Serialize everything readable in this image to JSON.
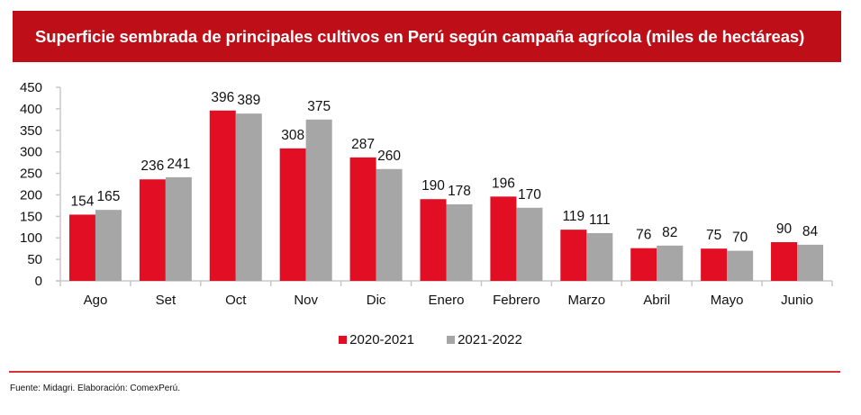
{
  "header": {
    "title": "Superficie sembrada de principales cultivos en Perú según campaña agrícola (miles de hectáreas)"
  },
  "colors": {
    "title_bg": "#be0e18",
    "series1": "#e20e24",
    "series2": "#a6a6a6",
    "axis": "#c8c8c8",
    "rule": "#d8333d"
  },
  "chart_data": {
    "type": "bar",
    "title": "Superficie sembrada de principales cultivos en Perú según campaña agrícola (miles de hectáreas)",
    "xlabel": "",
    "ylabel": "",
    "ylim": [
      0,
      450
    ],
    "yticks": [
      0,
      50,
      100,
      150,
      200,
      250,
      300,
      350,
      400,
      450
    ],
    "grid": false,
    "legend_position": "bottom",
    "categories": [
      "Ago",
      "Set",
      "Oct",
      "Nov",
      "Dic",
      "Enero",
      "Febrero",
      "Marzo",
      "Abril",
      "Mayo",
      "Junio"
    ],
    "series": [
      {
        "name": "2020-2021",
        "color": "#e20e24",
        "values": [
          154,
          236,
          396,
          308,
          287,
          190,
          196,
          119,
          76,
          75,
          90
        ]
      },
      {
        "name": "2021-2022",
        "color": "#a6a6a6",
        "values": [
          165,
          241,
          389,
          375,
          260,
          178,
          170,
          111,
          82,
          70,
          84
        ]
      }
    ]
  },
  "legend": {
    "items": [
      {
        "label": "2020-2021"
      },
      {
        "label": "2021-2022"
      }
    ]
  },
  "footer": {
    "source": "Fuente: Midagri. Elaboración: ComexPerú."
  }
}
